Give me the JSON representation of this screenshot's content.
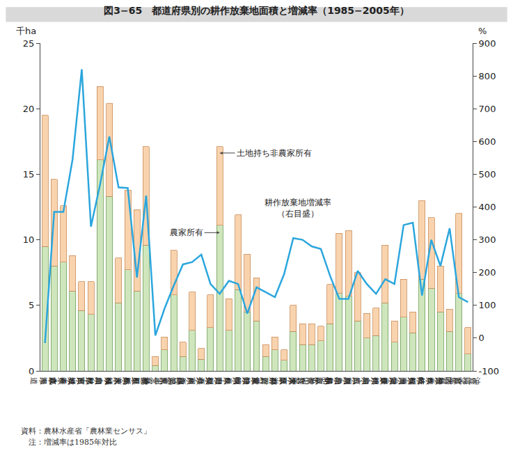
{
  "chart_data": {
    "type": "bar",
    "title": "図3−65　都道府県別の耕作放棄地面積と増減率（1985−2005年）",
    "ylabel": "千ha",
    "y2label": "%",
    "categories": [
      "北海道",
      "青森県",
      "岩手県",
      "宮城県",
      "秋田県",
      "山形県",
      "福島県",
      "茨城県",
      "栃木県",
      "群馬県",
      "埼玉県",
      "千葉県",
      "東京都",
      "神奈川県",
      "新潟県",
      "富山県",
      "石川県",
      "福井県",
      "山梨県",
      "長野県",
      "岐阜県",
      "静岡県",
      "愛知県",
      "三重県",
      "滋賀県",
      "京都府",
      "大阪府",
      "兵庫県",
      "奈良県",
      "和歌山県",
      "鳥取県",
      "島根県",
      "岡山県",
      "広島県",
      "山口県",
      "徳島県",
      "香川県",
      "愛媛県",
      "高知県",
      "福岡県",
      "佐賀県",
      "長崎県",
      "熊本県",
      "大分県",
      "宮崎県",
      "鹿児島県",
      "沖縄県"
    ],
    "stacked": true,
    "grid": false,
    "series": [
      {
        "name": "農家所有",
        "type": "bar",
        "color": "#cfe6bd",
        "values": [
          9.5,
          8.0,
          8.3,
          6.1,
          4.6,
          4.3,
          16.1,
          13.3,
          5.2,
          7.7,
          6.1,
          9.6,
          0.4,
          1.6,
          5.8,
          1.1,
          3.1,
          0.9,
          3.3,
          11.1,
          3.1,
          6.2,
          4.5,
          3.8,
          1.1,
          1.6,
          0.8,
          3.0,
          2.0,
          2.0,
          2.3,
          3.6,
          5.9,
          5.7,
          3.8,
          2.5,
          2.7,
          5.2,
          2.2,
          4.1,
          2.9,
          7.0,
          6.3,
          4.5,
          3.0,
          5.9,
          1.3
        ]
      },
      {
        "name": "土地持ち非農家所有",
        "type": "bar",
        "color": "#f8d3ae",
        "values": [
          10.0,
          6.6,
          4.3,
          2.7,
          2.2,
          2.5,
          5.6,
          7.1,
          3.4,
          6.1,
          6.2,
          7.5,
          0.7,
          1.0,
          3.4,
          1.1,
          2.9,
          0.8,
          2.5,
          6.0,
          2.4,
          5.7,
          4.4,
          3.3,
          0.9,
          1.0,
          0.8,
          2.0,
          1.6,
          1.6,
          1.1,
          3.0,
          4.6,
          5.0,
          3.7,
          1.9,
          2.1,
          4.4,
          1.6,
          2.9,
          1.6,
          6.0,
          5.4,
          3.5,
          1.7,
          6.1,
          2.0
        ]
      },
      {
        "name": "耕作放棄地増減率（右目盛）",
        "type": "line",
        "axis": "y2",
        "color": "#2ba6dd",
        "values": [
          -15,
          385,
          385,
          545,
          820,
          340,
          470,
          615,
          460,
          458,
          185,
          435,
          8,
          90,
          160,
          225,
          232,
          255,
          165,
          135,
          175,
          165,
          75,
          155,
          140,
          125,
          195,
          305,
          300,
          280,
          272,
          190,
          120,
          120,
          205,
          165,
          135,
          180,
          165,
          345,
          352,
          130,
          300,
          220,
          335,
          125,
          110
        ]
      }
    ],
    "annotations": [
      {
        "series": 1,
        "category": "長野県"
      },
      {
        "series": 0,
        "category": "長野県"
      },
      {
        "series": 2,
        "category": "兵庫県"
      }
    ],
    "ylim": [
      0,
      25
    ],
    "yticks": [
      0,
      5,
      10,
      15,
      20,
      25
    ],
    "y2lim": [
      -100,
      900
    ],
    "y2ticks": [
      -100,
      0,
      100,
      200,
      300,
      400,
      500,
      600,
      700,
      800,
      900
    ],
    "notes": [
      "資料：農林水産省「農林業センサス」",
      "　注：増減率は1985年対比"
    ]
  }
}
